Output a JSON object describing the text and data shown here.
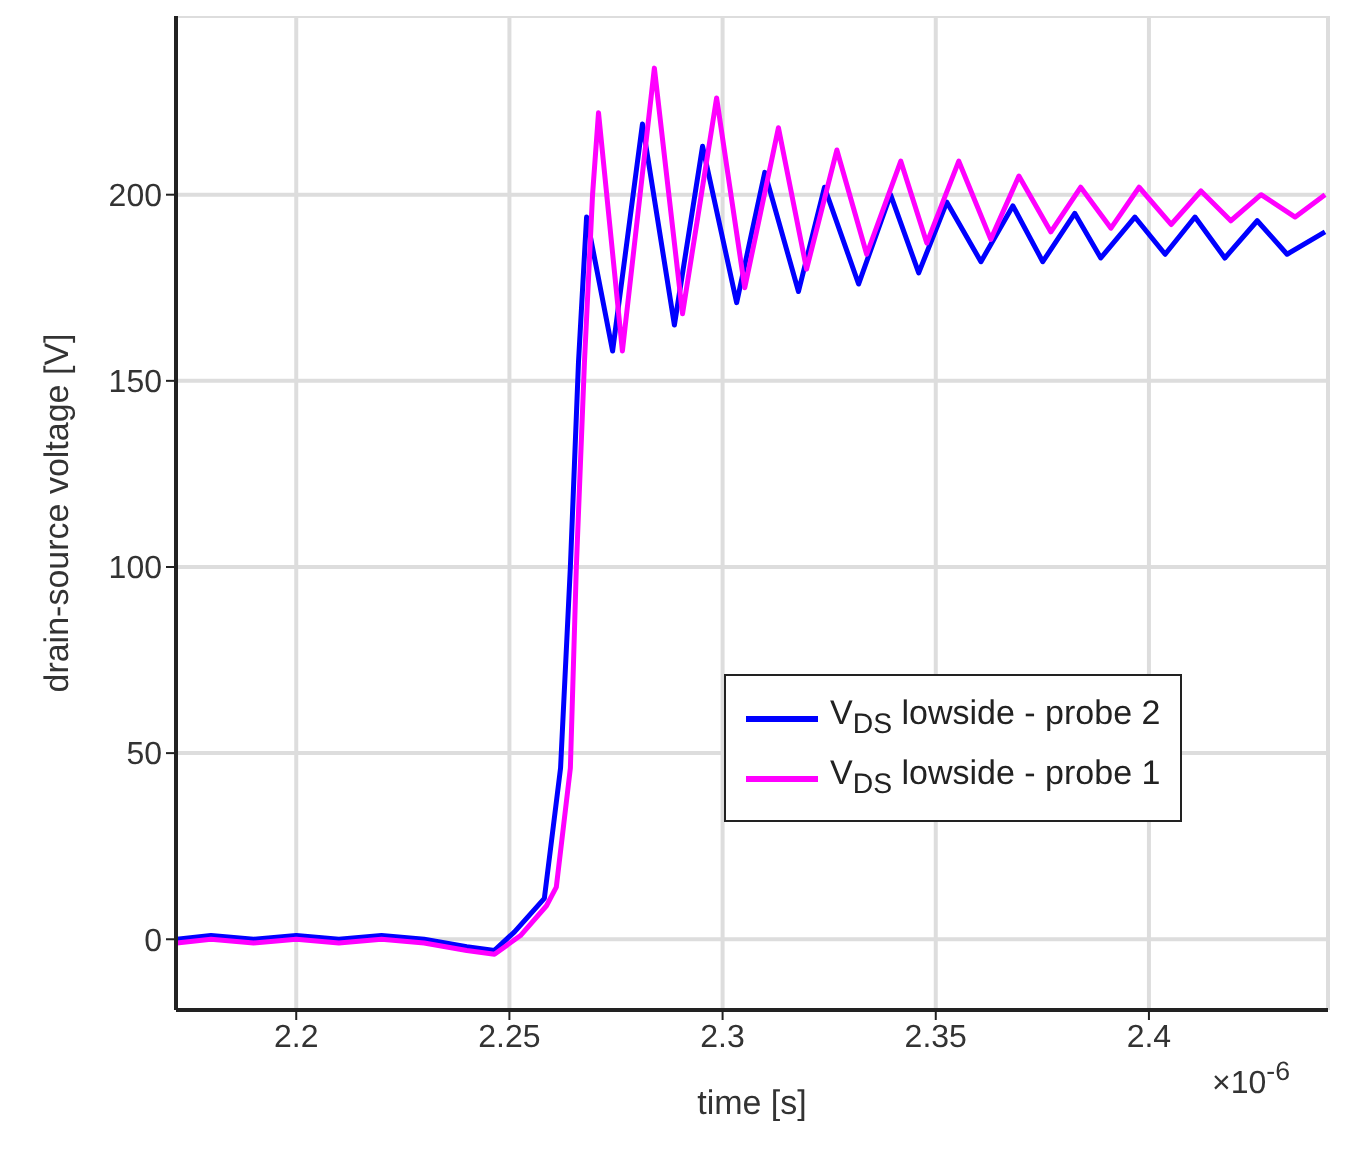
{
  "chart_data": {
    "type": "line",
    "xlabel": "time [s]",
    "ylabel": "drain-source voltage [V]",
    "annotations": [
      "×10$^{-6}$"
    ],
    "xlim": [
      2.1718,
      2.442
    ],
    "xticks": [
      2.2,
      2.25,
      2.3,
      2.35,
      2.4
    ],
    "ylim": [
      -19,
      248
    ],
    "yticks": [
      0,
      50,
      100,
      150,
      200
    ],
    "grid": true,
    "legend": "right",
    "marker": "none",
    "line_style": "solid",
    "series": [
      {
        "name": "V$_{DS}$ lowside - probe 2",
        "color": "#0000ff",
        "x": [
          2.172,
          2.18,
          2.19,
          2.2,
          2.21,
          2.22,
          2.23,
          2.24,
          2.2465,
          2.2512,
          2.2582,
          2.262,
          2.2643,
          2.2662,
          2.2681,
          2.2742,
          2.2812,
          2.2887,
          2.2953,
          2.3033,
          2.3099,
          2.3178,
          2.3239,
          2.3319,
          2.3394,
          2.346,
          2.3526,
          2.3606,
          2.3681,
          2.3751,
          2.3826,
          2.3887,
          2.3967,
          2.4038,
          2.4108,
          2.4178,
          2.4254,
          2.4324,
          2.4413
        ],
        "values": [
          0,
          1,
          0,
          1,
          0,
          1,
          0,
          -2,
          -3,
          2,
          11,
          46,
          100,
          155,
          194,
          158,
          219,
          165,
          213,
          171,
          206,
          174,
          202,
          176,
          200,
          179,
          198,
          182,
          197,
          182,
          195,
          183,
          194,
          184,
          194,
          183,
          193,
          184,
          190
        ]
      },
      {
        "name": "V$_{DS}$ lowside - probe 1",
        "color": "#ff00ff",
        "x": [
          2.172,
          2.18,
          2.19,
          2.2,
          2.21,
          2.22,
          2.23,
          2.24,
          2.2465,
          2.2526,
          2.2587,
          2.261,
          2.2643,
          2.2657,
          2.2676,
          2.2695,
          2.2709,
          2.2765,
          2.284,
          2.2906,
          2.2986,
          2.3052,
          2.3131,
          2.3197,
          2.3268,
          2.3338,
          2.3418,
          2.3479,
          2.3554,
          2.3629,
          2.3695,
          2.377,
          2.384,
          2.3911,
          2.3977,
          2.4052,
          2.4122,
          2.4192,
          2.4263,
          2.4343,
          2.4413
        ],
        "values": [
          -1,
          0,
          -1,
          0,
          -1,
          0,
          -1,
          -3,
          -4,
          1,
          9,
          14,
          46,
          100,
          155,
          200,
          222,
          158,
          234,
          168,
          226,
          175,
          218,
          180,
          212,
          184,
          209,
          187,
          209,
          188,
          205,
          190,
          202,
          191,
          202,
          192,
          201,
          193,
          200,
          194,
          200
        ]
      }
    ]
  }
}
